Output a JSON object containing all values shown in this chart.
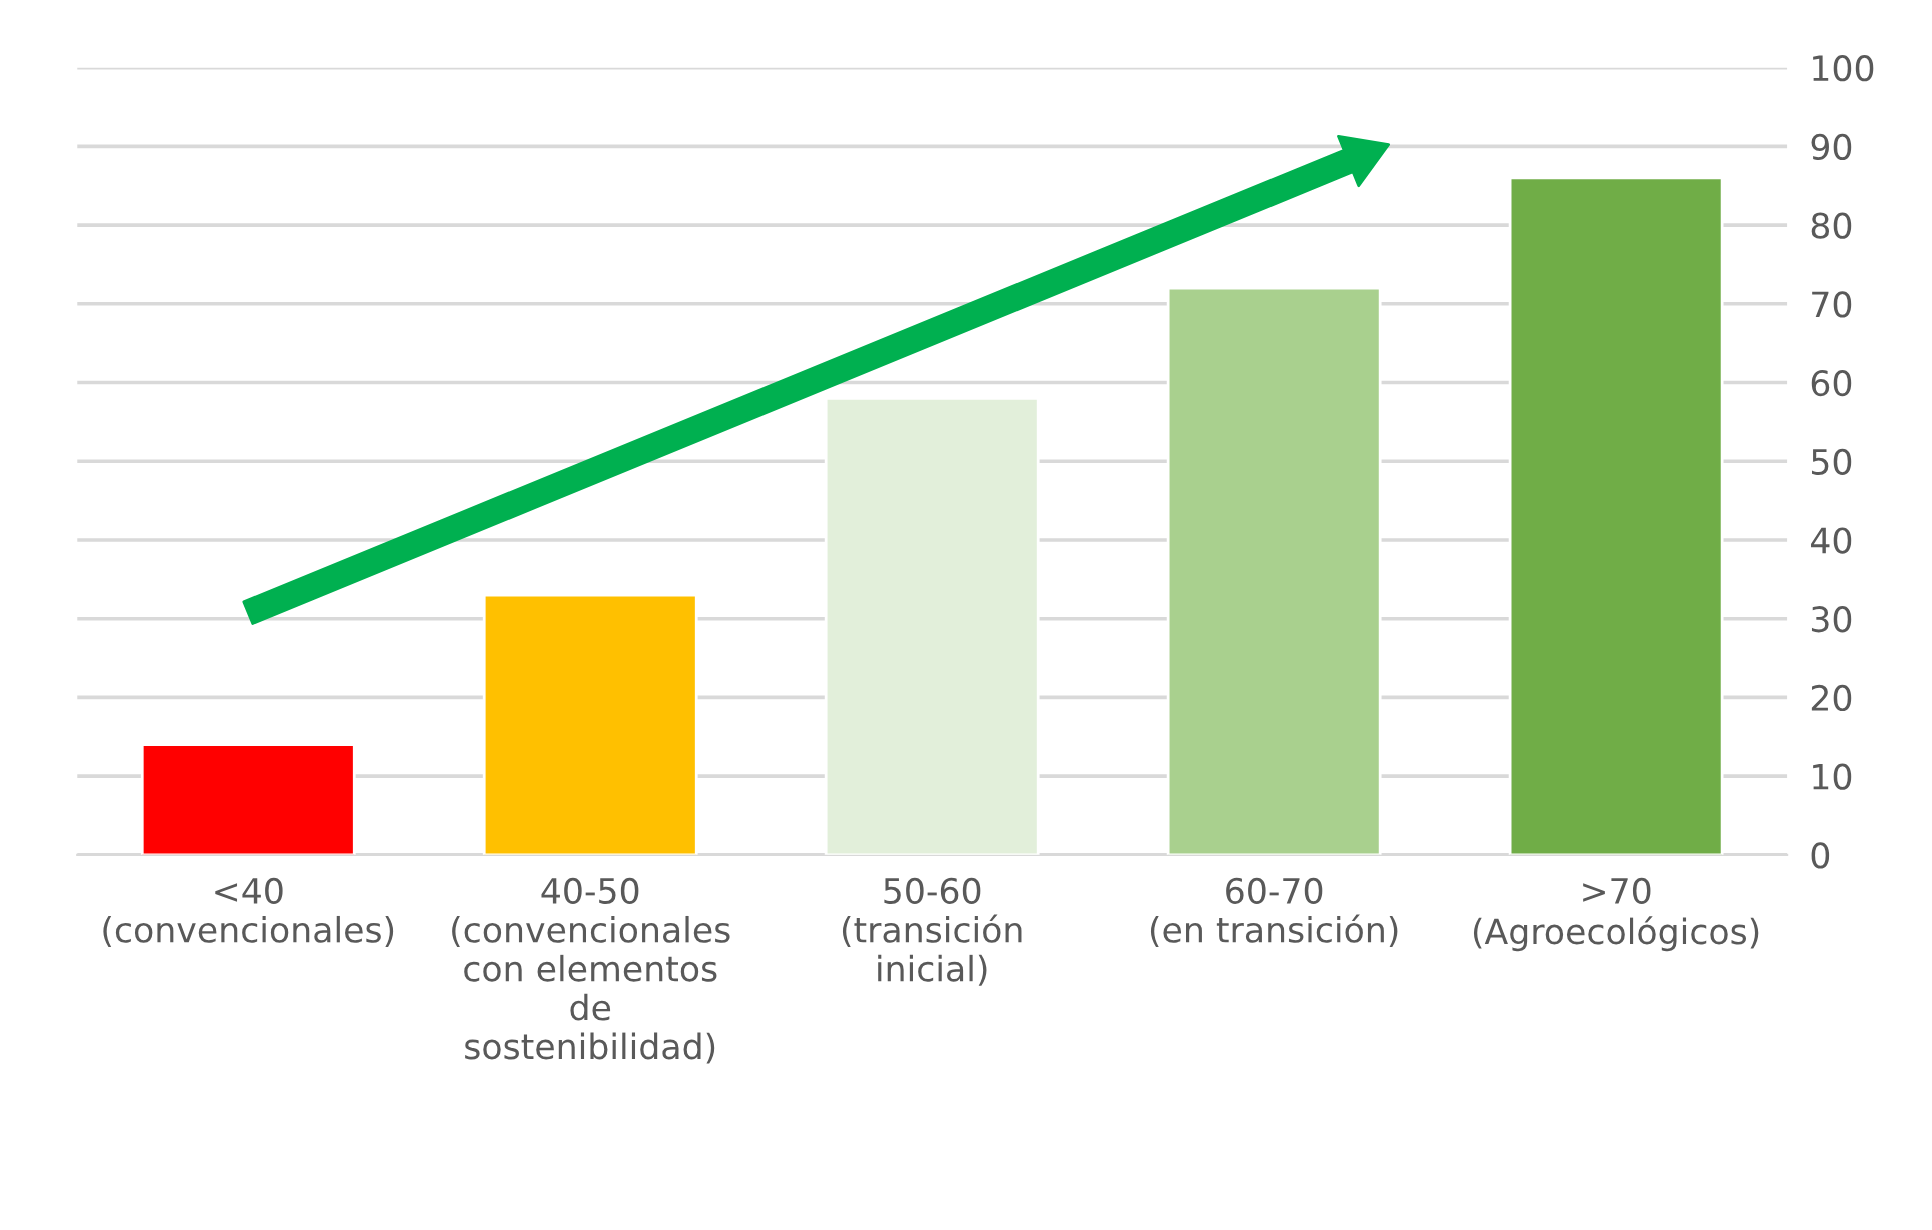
{
  "chart_data": {
    "type": "bar",
    "categories": [
      "<40\n(convencionales)",
      "40-50\n(convencionales\ncon elementos\nde\nsostenibilidad)",
      "50-60\n(transición\ninicial)",
      "60-70\n(en transición)",
      ">70\n(Agroecológicos)"
    ],
    "values": [
      14,
      33,
      58,
      72,
      86
    ],
    "colors": [
      "#ff0000",
      "#ffc000",
      "#e2efda",
      "#a9d08e",
      "#70ad47"
    ],
    "ylim": [
      0,
      100
    ],
    "yticks": [
      0,
      10,
      20,
      30,
      40,
      50,
      60,
      70,
      80,
      90,
      100
    ],
    "grid": "y"
  }
}
